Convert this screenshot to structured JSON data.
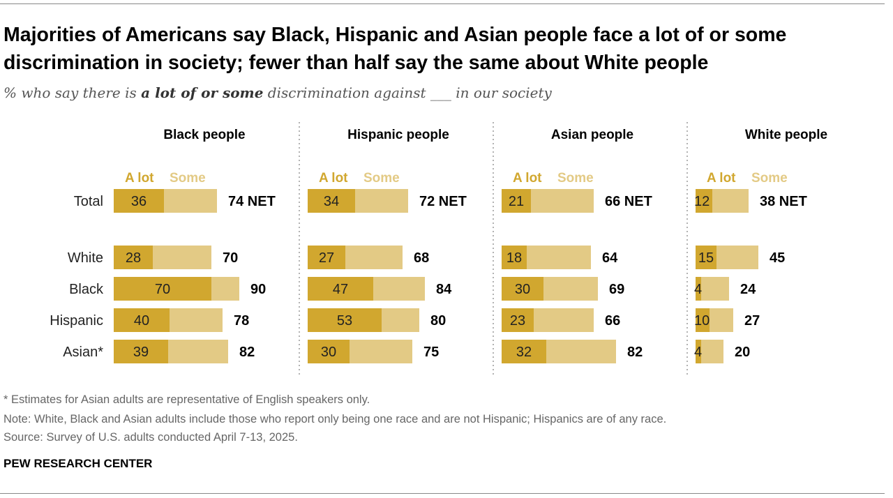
{
  "title": "Majorities of Americans say Black, Hispanic and Asian people face a lot of or some discrimination in society; fewer than half say the same about White people",
  "subtitle": {
    "pre": "% who say there is ",
    "bold": "a lot of or some",
    "post": " discrimination against ___ in our society"
  },
  "notes": [
    "* Estimates for Asian adults are representative of English speakers only.",
    "Note: White, Black and Asian adults include those who report only being one race and are not Hispanic; Hispanics are of any race.",
    "Source: Survey of U.S. adults conducted April 7-13, 2025."
  ],
  "brand": "PEW RESEARCH CENTER",
  "colors": {
    "a_lot": "#D1A72F",
    "some": "#E3CA85"
  },
  "chart_data": {
    "type": "bar",
    "orientation": "horizontal-stacked",
    "legend": [
      "A lot",
      "Some"
    ],
    "net_label": "NET",
    "categories": [
      "Total",
      "White",
      "Black",
      "Hispanic",
      "Asian*"
    ],
    "panels": [
      {
        "title": "Black people",
        "a_lot": [
          36,
          28,
          70,
          40,
          39
        ],
        "net": [
          74,
          70,
          90,
          78,
          82
        ]
      },
      {
        "title": "Hispanic people",
        "a_lot": [
          34,
          27,
          47,
          53,
          30
        ],
        "net": [
          72,
          68,
          84,
          80,
          75
        ]
      },
      {
        "title": "Asian people",
        "a_lot": [
          21,
          18,
          30,
          23,
          32
        ],
        "net": [
          66,
          64,
          69,
          66,
          82
        ]
      },
      {
        "title": "White people",
        "a_lot": [
          12,
          15,
          4,
          10,
          4
        ],
        "net": [
          38,
          45,
          24,
          27,
          20
        ]
      }
    ]
  }
}
